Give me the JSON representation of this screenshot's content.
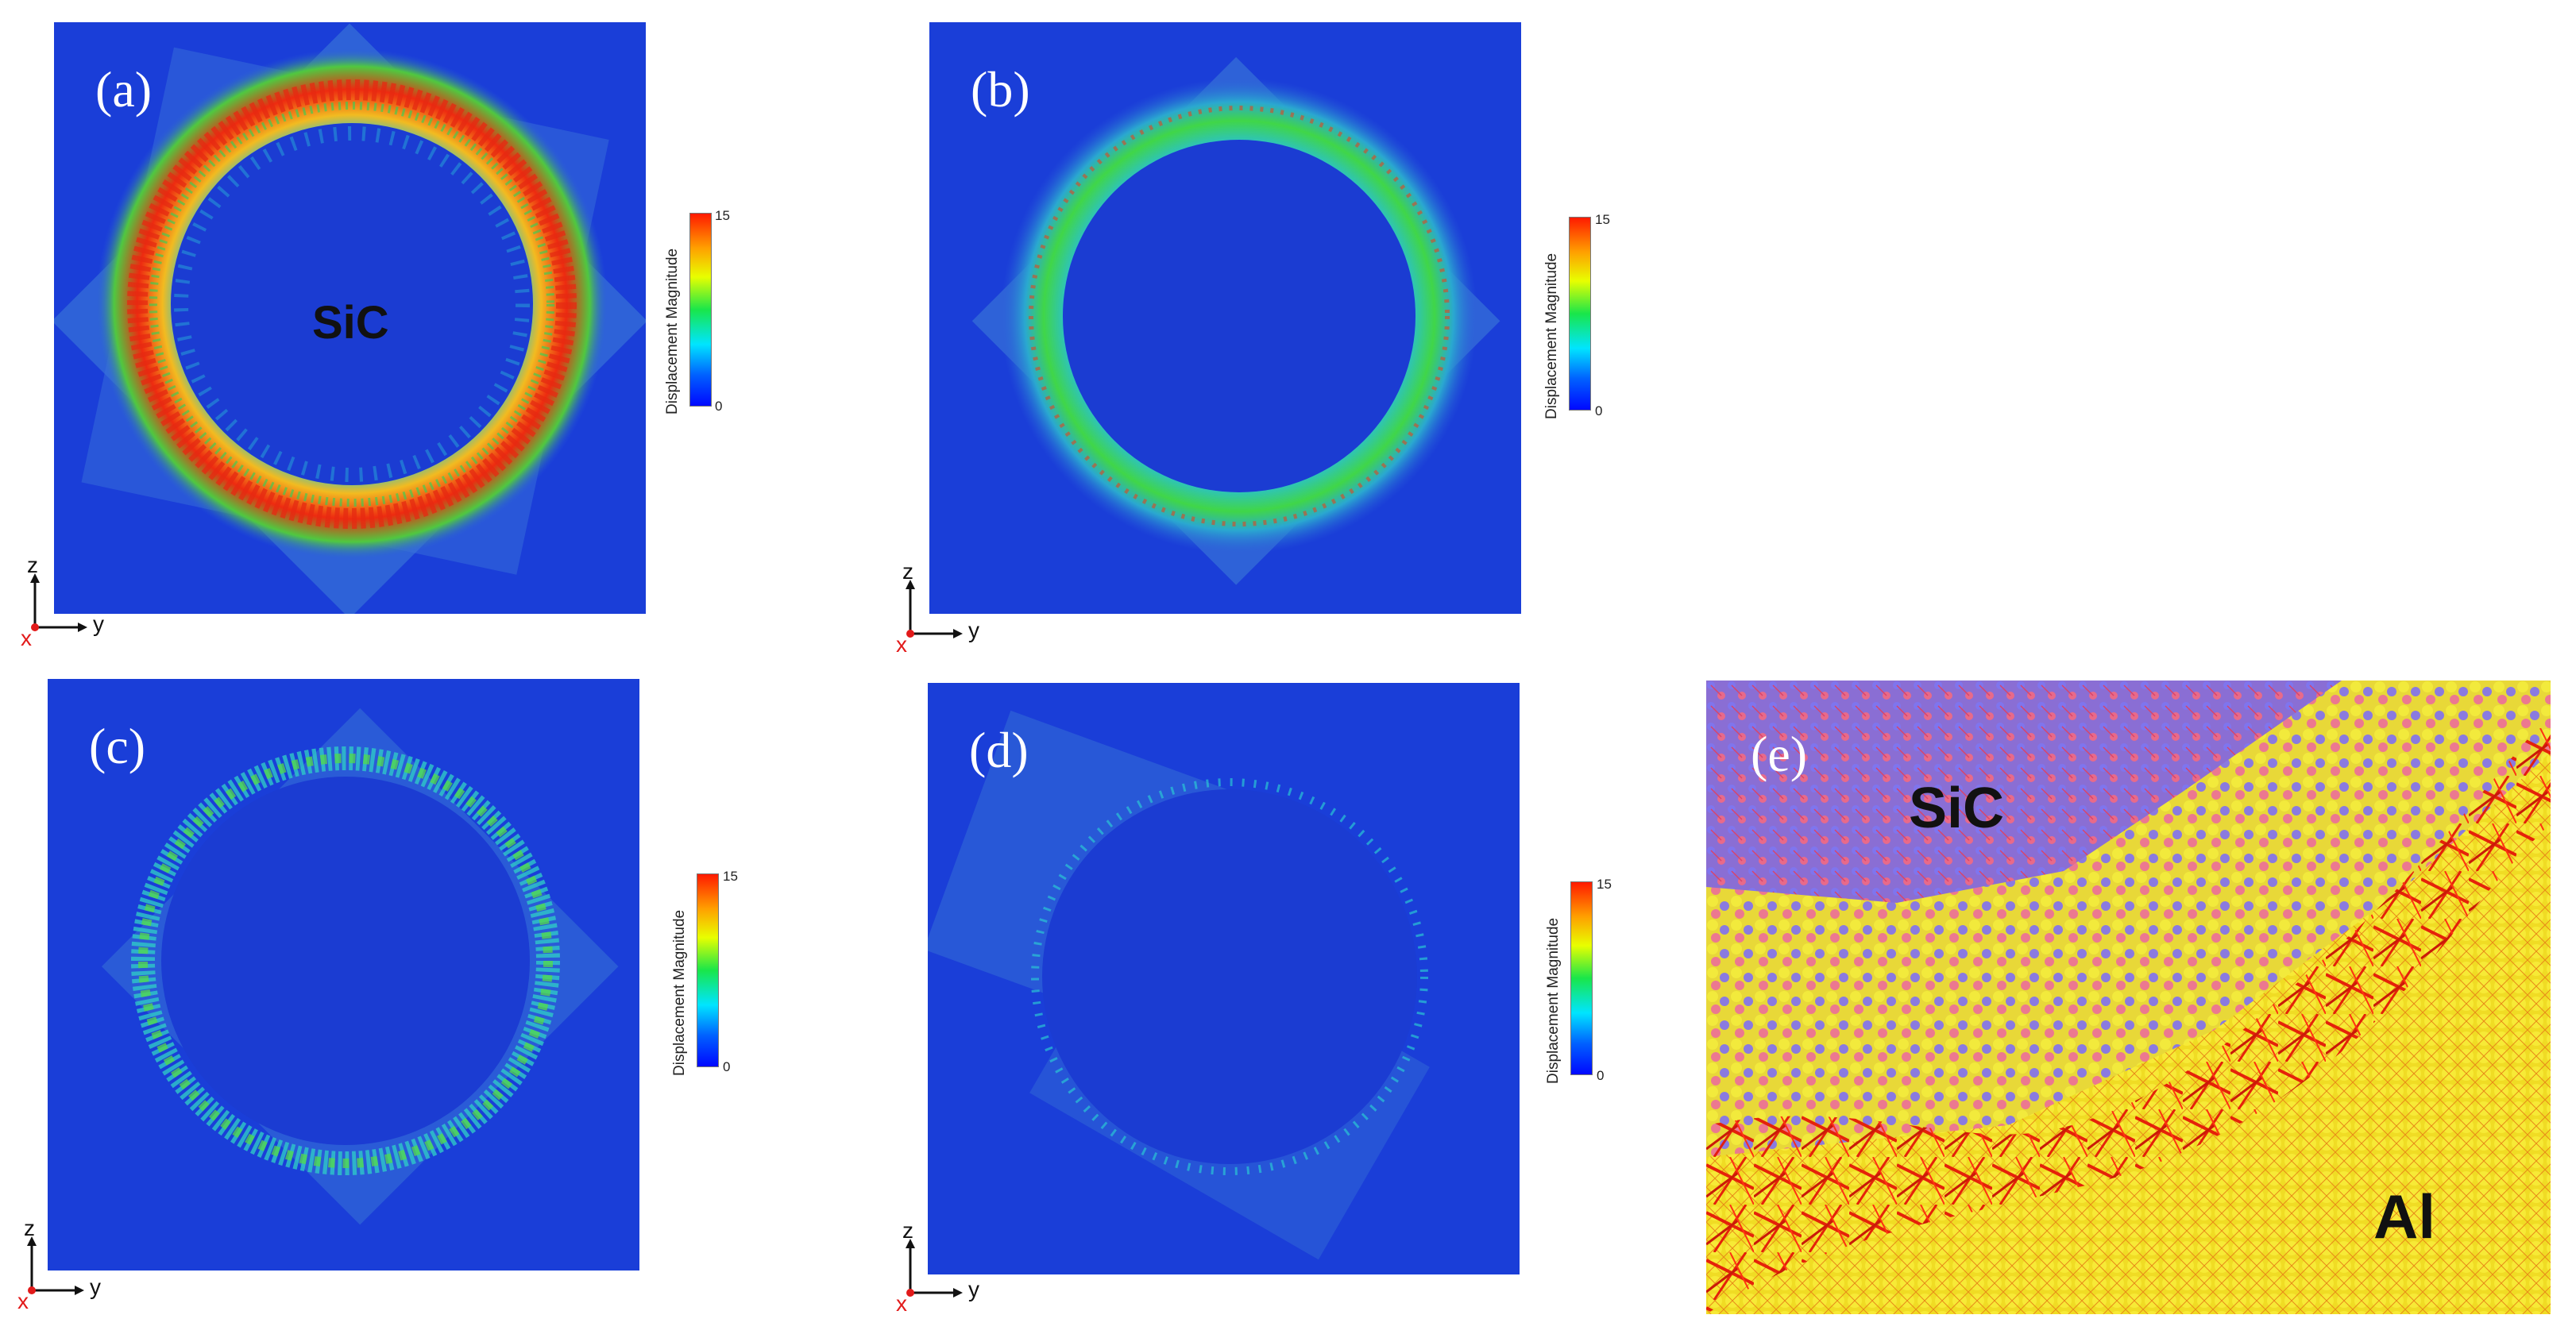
{
  "panels": [
    {
      "id": "a",
      "label": "(a)",
      "inner_label": "SiC"
    },
    {
      "id": "b",
      "label": "(b)"
    },
    {
      "id": "c",
      "label": "(c)"
    },
    {
      "id": "d",
      "label": "(d)"
    },
    {
      "id": "e",
      "label": "(e)",
      "sic_label": "SiC",
      "al_label": "Al"
    }
  ],
  "colorbar": {
    "title": "Displacement Magnitude",
    "max": "15",
    "min": "0"
  },
  "axes": {
    "z": "z",
    "y": "y",
    "x": "x"
  },
  "colors": {
    "background_blue": "#1a3fd8",
    "ring_red": "#f22a10",
    "ring_green": "#35d24a",
    "si_atom": "#e8e024",
    "c_atom": "#7a6ee8",
    "bond_red": "#e41808",
    "al_yellow": "#f5e62c"
  }
}
